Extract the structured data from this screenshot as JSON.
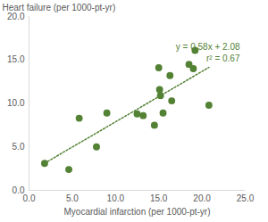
{
  "chart_data": {
    "type": "scatter",
    "x_label": "Myocardial infarction (per 1000-pt-yr)",
    "y_label": "Heart failure (per 1000-pt-yr)",
    "x": [
      1.8,
      4.6,
      5.8,
      7.8,
      9.0,
      12.5,
      13.2,
      14.5,
      15.0,
      15.1,
      15.2,
      15.5,
      16.3,
      16.5,
      18.5,
      19.0,
      19.2,
      20.8
    ],
    "values": [
      3.1,
      2.4,
      8.3,
      5.0,
      8.9,
      8.8,
      8.6,
      7.5,
      14.1,
      11.6,
      10.9,
      8.9,
      13.2,
      10.3,
      14.5,
      14.0,
      16.1,
      9.8
    ],
    "color": "#548235",
    "marker": "circle",
    "trendline": {
      "x": [
        1.8,
        20.8
      ],
      "values": [
        3.12,
        14.14
      ],
      "line_style": "dotted",
      "color": "#548235"
    },
    "annotations": [
      "y = 0.58x + 2.08",
      "r² = 0.67"
    ],
    "xlim": [
      0,
      25
    ],
    "xticks": [
      {
        "value": 0,
        "label": "0.0"
      },
      {
        "value": 5,
        "label": "5.0"
      },
      {
        "value": 10,
        "label": "10.0"
      },
      {
        "value": 15,
        "label": "15.0"
      },
      {
        "value": 20,
        "label": "20.0"
      },
      {
        "value": 25,
        "label": "25.0"
      }
    ],
    "ylim": [
      0,
      20
    ],
    "yticks": [
      {
        "value": 0,
        "label": "0.0"
      },
      {
        "value": 5,
        "label": "5.0"
      },
      {
        "value": 10,
        "label": "10.0"
      },
      {
        "value": 15,
        "label": "15.0"
      },
      {
        "value": 20,
        "label": "20.0"
      }
    ],
    "grid": false
  }
}
